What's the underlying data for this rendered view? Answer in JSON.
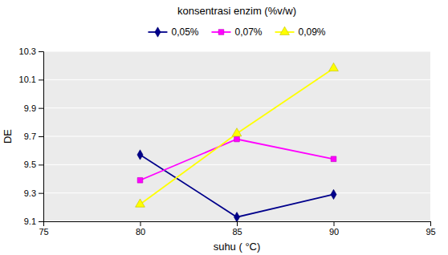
{
  "chart_data": {
    "type": "line",
    "x": [
      80,
      85,
      90
    ],
    "series": [
      {
        "name": "0,05%",
        "values": [
          9.57,
          9.13,
          9.29
        ],
        "color": "#00008B",
        "marker": "diamond"
      },
      {
        "name": "0,07%",
        "values": [
          9.39,
          9.68,
          9.54
        ],
        "color": "#ff00ff",
        "marker": "square"
      },
      {
        "name": "0,09%",
        "values": [
          9.22,
          9.72,
          10.18
        ],
        "color": "#ffff00",
        "marker": "triangle-up"
      }
    ],
    "xlim": [
      75,
      95
    ],
    "ylim": [
      9.1,
      10.3
    ],
    "xticks": [
      75,
      80,
      85,
      90,
      95
    ],
    "yticks": [
      9.1,
      9.3,
      9.5,
      9.7,
      9.9,
      10.1,
      10.3
    ],
    "xlabel": "suhu ( °C)",
    "ylabel": "DE",
    "legend_title": "konsentrasi enzim (%v/w)",
    "legend": "top",
    "grid": "y"
  }
}
